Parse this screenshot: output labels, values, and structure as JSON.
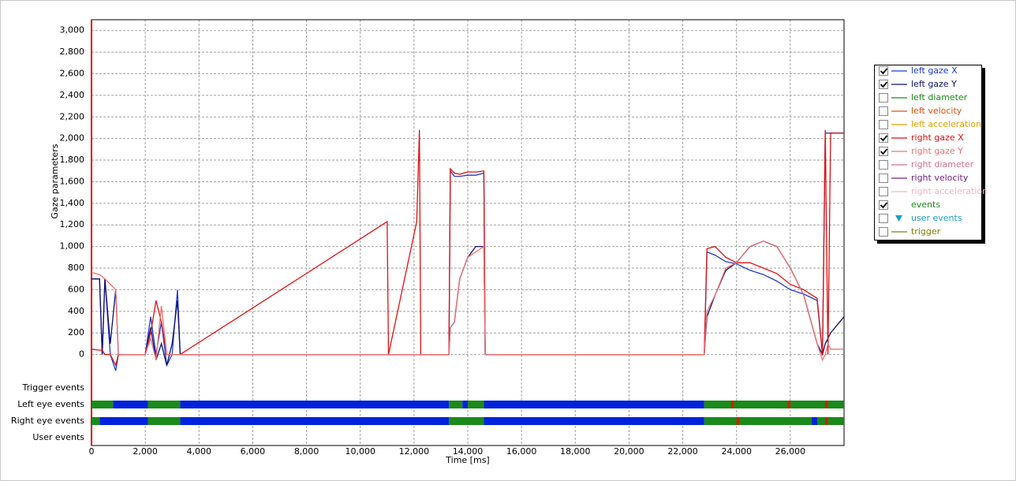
{
  "chart_data": {
    "type": "line",
    "y_label": "Gaze parameters",
    "x_label": "Time [ms]",
    "xlim": [
      0,
      28000
    ],
    "ylim": [
      -200,
      3100
    ],
    "xticks": [
      0,
      {
        "value": 2000,
        "label": "2,000"
      },
      {
        "value": 4000,
        "label": "4,000"
      },
      {
        "value": 6000,
        "label": "6,000"
      },
      {
        "value": 8000,
        "label": "8,000"
      },
      {
        "value": 10000,
        "label": "10,000"
      },
      {
        "value": 12000,
        "label": "12,000"
      },
      {
        "value": 14000,
        "label": "14,000"
      },
      {
        "value": 16000,
        "label": "16,000"
      },
      {
        "value": 18000,
        "label": "18,000"
      },
      {
        "value": 20000,
        "label": "20,000"
      },
      {
        "value": 22000,
        "label": "22,000"
      },
      {
        "value": 24000,
        "label": "24,000"
      },
      {
        "value": 26000,
        "label": "26,000"
      }
    ],
    "yticks": [
      0,
      200,
      400,
      600,
      800,
      {
        "value": 1000,
        "label": "1,000"
      },
      {
        "value": 1200,
        "label": "1,200"
      },
      {
        "value": 1400,
        "label": "1,400"
      },
      {
        "value": 1600,
        "label": "1,600"
      },
      {
        "value": 1800,
        "label": "1,800"
      },
      {
        "value": 2000,
        "label": "2,000"
      },
      {
        "value": 2200,
        "label": "2,200"
      },
      {
        "value": 2400,
        "label": "2,400"
      },
      {
        "value": 2600,
        "label": "2,600"
      },
      {
        "value": 2800,
        "label": "2,800"
      },
      {
        "value": 3000,
        "label": "3,000"
      }
    ],
    "grid": true,
    "x": [
      0,
      300,
      400,
      500,
      700,
      900,
      1000,
      2000,
      2200,
      2400,
      2600,
      2800,
      3000,
      3200,
      3300,
      11000,
      11050,
      12100,
      12200,
      12250,
      13300,
      13350,
      13500,
      13700,
      14000,
      14300,
      14600,
      14650,
      22000,
      22800,
      22900,
      23200,
      23600,
      24000,
      24500,
      25000,
      25500,
      26000,
      26500,
      27000,
      27200,
      27300,
      27400,
      27500,
      28000
    ],
    "series": [
      {
        "name": "left gaze X",
        "color": "#1f3bd6",
        "checked": true,
        "values": [
          700,
          700,
          0,
          700,
          0,
          -150,
          0,
          0,
          350,
          0,
          300,
          -100,
          0,
          600,
          0,
          0,
          0,
          0,
          0,
          0,
          0,
          1700,
          1650,
          1650,
          1660,
          1660,
          1680,
          0,
          0,
          0,
          950,
          920,
          860,
          840,
          780,
          740,
          680,
          600,
          560,
          500,
          0,
          2050,
          2050,
          2050,
          2050
        ]
      },
      {
        "name": "left gaze Y",
        "color": "#101070",
        "checked": true,
        "values": [
          700,
          700,
          0,
          700,
          100,
          600,
          0,
          0,
          250,
          -50,
          100,
          -100,
          100,
          500,
          0,
          0,
          0,
          0,
          0,
          0,
          0,
          250,
          300,
          700,
          900,
          1000,
          1000,
          0,
          0,
          0,
          350,
          550,
          780,
          850,
          1000,
          1050,
          1000,
          800,
          550,
          100,
          0,
          100,
          150,
          200,
          350
        ]
      },
      {
        "name": "left diameter",
        "color": "#1a8a1a",
        "checked": false
      },
      {
        "name": "left velocity",
        "color": "#e05010",
        "checked": false
      },
      {
        "name": "left acceleration",
        "color": "#e0a000",
        "checked": false
      },
      {
        "name": "right gaze X",
        "color": "#e01010",
        "checked": true,
        "values": [
          50,
          40,
          40,
          0,
          0,
          -100,
          0,
          0,
          200,
          500,
          300,
          0,
          0,
          0,
          0,
          1230,
          0,
          1230,
          2080,
          0,
          0,
          1720,
          1680,
          1670,
          1690,
          1690,
          1700,
          0,
          0,
          0,
          980,
          1000,
          900,
          850,
          850,
          800,
          750,
          650,
          600,
          520,
          0,
          2080,
          0,
          2050,
          2050
        ]
      },
      {
        "name": "right gaze Y",
        "color": "#f07070",
        "checked": true,
        "values": [
          760,
          740,
          720,
          700,
          650,
          600,
          0,
          0,
          150,
          -50,
          450,
          0,
          0,
          0,
          0,
          0,
          0,
          0,
          0,
          0,
          0,
          250,
          300,
          700,
          900,
          950,
          1000,
          0,
          0,
          0,
          400,
          550,
          800,
          850,
          1000,
          1050,
          1000,
          800,
          550,
          100,
          -50,
          0,
          100,
          50,
          50
        ]
      },
      {
        "name": "right diameter",
        "color": "#d07090",
        "checked": false
      },
      {
        "name": "right velocity",
        "color": "#702080",
        "checked": false
      },
      {
        "name": "right acceleration",
        "color": "#f4b4c4",
        "checked": false
      },
      {
        "name": "events",
        "color": "#1a8a1a",
        "checked": true,
        "swatch": "none"
      },
      {
        "name": "user events",
        "color": "#1aa0c8",
        "checked": false,
        "swatch": "triangle"
      },
      {
        "name": "trigger",
        "color": "#808000",
        "checked": false
      }
    ],
    "event_rows": [
      {
        "name": "Trigger events",
        "segments": []
      },
      {
        "name": "Left eye events",
        "segments": [
          {
            "start": 0,
            "end": 800,
            "color": "#1a8a1a"
          },
          {
            "start": 800,
            "end": 2100,
            "color": "#0022dd"
          },
          {
            "start": 2100,
            "end": 3300,
            "color": "#1a8a1a"
          },
          {
            "start": 3300,
            "end": 13300,
            "color": "#0022dd"
          },
          {
            "start": 13300,
            "end": 13800,
            "color": "#1a8a1a"
          },
          {
            "start": 13800,
            "end": 14000,
            "color": "#0022dd"
          },
          {
            "start": 14000,
            "end": 14600,
            "color": "#1a8a1a"
          },
          {
            "start": 14600,
            "end": 22800,
            "color": "#0022dd"
          },
          {
            "start": 22800,
            "end": 28000,
            "color": "#1a8a1a"
          },
          {
            "start": 23800,
            "end": 23900,
            "color": "#cc2200"
          },
          {
            "start": 25900,
            "end": 26000,
            "color": "#cc2200"
          },
          {
            "start": 27300,
            "end": 27400,
            "color": "#cc2200"
          }
        ]
      },
      {
        "name": "Right eye events",
        "segments": [
          {
            "start": 0,
            "end": 300,
            "color": "#1a8a1a"
          },
          {
            "start": 300,
            "end": 2100,
            "color": "#0022dd"
          },
          {
            "start": 2100,
            "end": 3300,
            "color": "#1a8a1a"
          },
          {
            "start": 3300,
            "end": 13300,
            "color": "#0022dd"
          },
          {
            "start": 13300,
            "end": 14600,
            "color": "#1a8a1a"
          },
          {
            "start": 14600,
            "end": 22800,
            "color": "#0022dd"
          },
          {
            "start": 22800,
            "end": 28000,
            "color": "#1a8a1a"
          },
          {
            "start": 24000,
            "end": 24100,
            "color": "#cc2200"
          },
          {
            "start": 26800,
            "end": 27000,
            "color": "#0022dd"
          },
          {
            "start": 27300,
            "end": 27400,
            "color": "#cc2200"
          }
        ]
      },
      {
        "name": "User events",
        "segments": []
      }
    ]
  }
}
